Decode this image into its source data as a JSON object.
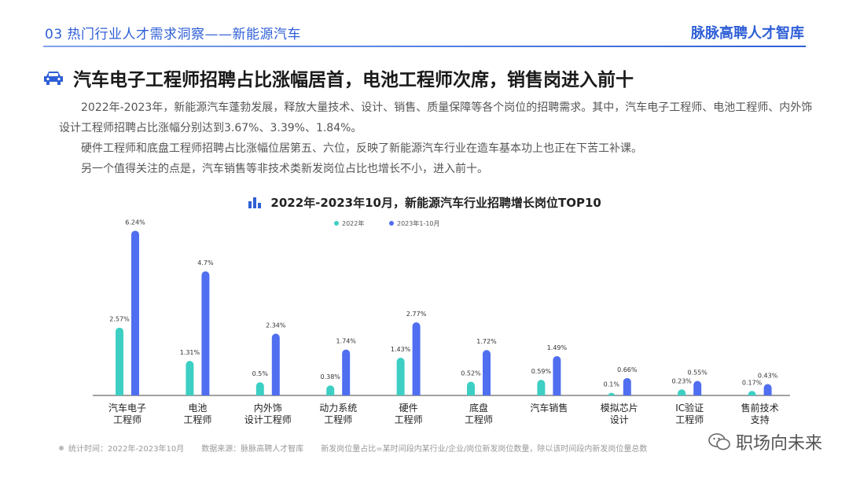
{
  "header": {
    "section": "03 热门行业人才需求洞察——新能源汽车",
    "brand": "脉脉高聘人才智库"
  },
  "title": "汽车电子工程师招聘占比涨幅居首，电池工程师次席，销售岗进入前十",
  "paragraphs": [
    "2022年-2023年，新能源汽车蓬勃发展，释放大量技术、设计、销售、质量保障等各个岗位的招聘需求。其中，汽车电子工程师、电池工程师、内外饰设计工程师招聘占比涨幅分别达到3.67%、3.39%、1.84%。",
    "硬件工程师和底盘工程师招聘占比涨幅位居第五、六位，反映了新能源汽车行业在造车基本功上也正在下苦工补课。",
    "另一个值得关注的点是，汽车销售等非技术类新发岗位占比也增长不小，进入前十。"
  ],
  "chart_data": {
    "type": "bar",
    "title": "2022年-2023年10月，新能源汽车行业招聘增长岗位TOP10",
    "categories": [
      [
        "汽车电子",
        "工程师"
      ],
      [
        "电池",
        "工程师"
      ],
      [
        "内外饰",
        "设计工程师"
      ],
      [
        "动力系统",
        "工程师"
      ],
      [
        "硬件",
        "工程师"
      ],
      [
        "底盘",
        "工程师"
      ],
      [
        "汽车销售"
      ],
      [
        "模拟芯片",
        "设计"
      ],
      [
        "IC验证",
        "工程师"
      ],
      [
        "售前技术",
        "支持"
      ]
    ],
    "series": [
      {
        "name": "2022年",
        "color": "#3dcfc3",
        "values": [
          2.57,
          1.31,
          0.5,
          0.38,
          1.43,
          0.52,
          0.59,
          0.1,
          0.23,
          0.17
        ],
        "labels": [
          "2.57%",
          "1.31%",
          "0.5%",
          "0.38%",
          "1.43%",
          "0.52%",
          "0.59%",
          "0.1%",
          "0.23%",
          "0.17%"
        ]
      },
      {
        "name": "2023年1-10月",
        "color": "#4f6ef0",
        "values": [
          6.24,
          4.7,
          2.34,
          1.74,
          2.77,
          1.72,
          1.49,
          0.66,
          0.55,
          0.43
        ],
        "labels": [
          "6.24%",
          "4.7%",
          "2.34%",
          "1.74%",
          "2.77%",
          "1.72%",
          "1.49%",
          "0.66%",
          "0.55%",
          "0.43%"
        ]
      }
    ],
    "ylim": [
      0,
      6.7
    ],
    "legend": "top-center"
  },
  "footer": {
    "time": "统计时间：2022年-2023年10月",
    "source": "数据来源：脉脉高聘人才智库",
    "note": "新发岗位量占比=某时间段内某行业/企业/岗位新发岗位数量，除以该时间段内新发岗位量总数"
  },
  "watermark": "职场向未来",
  "colors": {
    "accent": "#2f5fd6",
    "teal": "#3dcfc3",
    "blue": "#4f6ef0"
  }
}
